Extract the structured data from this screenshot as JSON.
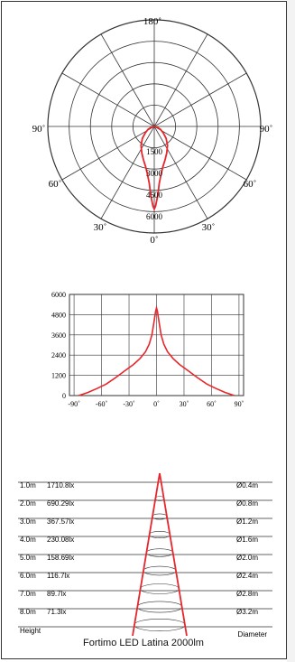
{
  "polar": {
    "angle_labels": {
      "top": "180˚",
      "left": "90˚",
      "right": "90˚",
      "lower_left": "60˚",
      "lower_right": "60˚",
      "bottom_left": "30˚",
      "bottom_right": "30˚",
      "bottom": "0˚"
    },
    "ring_labels": [
      "1500",
      "3000",
      "4500",
      "6000"
    ]
  },
  "chart_data": [
    {
      "type": "line",
      "title": "",
      "xlabel": "",
      "ylabel": "",
      "xlim": [
        -95,
        95
      ],
      "ylim": [
        0,
        6000
      ],
      "x_ticks": [
        -90,
        -60,
        -30,
        0,
        30,
        60,
        90
      ],
      "x_tick_labels": [
        "-90˚",
        "-60˚",
        "-30˚",
        "0˚",
        "30˚",
        "60˚",
        "90˚"
      ],
      "y_ticks": [
        0,
        1200,
        2400,
        3600,
        4800,
        6000
      ],
      "y_tick_labels": [
        "0",
        "1200",
        "2400",
        "3600",
        "4800",
        "6000"
      ],
      "grid": true,
      "series": [
        {
          "color": "#e8262b",
          "x": [
            -85,
            -75,
            -65,
            -55,
            -45,
            -35,
            -25,
            -18,
            -12,
            -8,
            -5,
            -3,
            -1,
            0,
            1,
            3,
            5,
            8,
            12,
            18,
            25,
            35,
            45,
            55,
            65,
            75,
            85
          ],
          "y": [
            0,
            180,
            420,
            680,
            1050,
            1450,
            1850,
            2200,
            2600,
            3050,
            3600,
            4300,
            5000,
            5200,
            5000,
            4300,
            3600,
            3050,
            2600,
            2200,
            1850,
            1450,
            1050,
            680,
            420,
            180,
            0
          ]
        }
      ]
    }
  ],
  "light_cone": {
    "rows": [
      {
        "height": "1.0m",
        "lux": "1710.8lx",
        "diameter": "Ø0.4m"
      },
      {
        "height": "2.0m",
        "lux": "690.29lx",
        "diameter": "Ø0.8m"
      },
      {
        "height": "3.0m",
        "lux": "367.57lx",
        "diameter": "Ø1.2m"
      },
      {
        "height": "4.0m",
        "lux": "230.08lx",
        "diameter": "Ø1.6m"
      },
      {
        "height": "5.0m",
        "lux": "158.69lx",
        "diameter": "Ø2.0m"
      },
      {
        "height": "6.0m",
        "lux": "116.7lx",
        "diameter": "Ø2.4m"
      },
      {
        "height": "7.0m",
        "lux": "89.7lx",
        "diameter": "Ø2.8m"
      },
      {
        "height": "8.0m",
        "lux": "71.3lx",
        "diameter": "Ø3.2m"
      }
    ],
    "height_label": "Height",
    "diameter_label": "Diameter"
  },
  "caption": "Fortimo LED Latina   2000lm",
  "colors": {
    "curve": "#e8262b",
    "grid": "#333333"
  }
}
